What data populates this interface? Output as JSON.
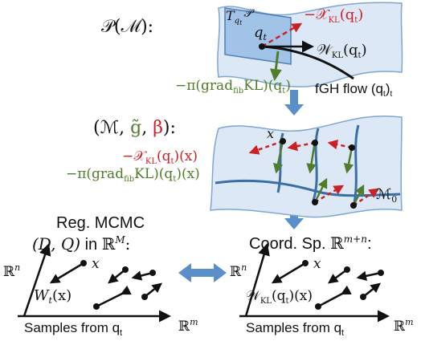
{
  "top": {
    "label": "𝒫(ℳ):",
    "tangent_label": "T",
    "tangent_sub": "q",
    "tangent_sub2": "t",
    "tangent_P": "𝒫",
    "q_t": "q",
    "q_t_sub": "t",
    "red_arrow_label": "−𝒳",
    "red_arrow_sub": "KL",
    "red_arrow_arg": "(q",
    "red_arrow_arg_sub": "t",
    "red_arrow_close": ")",
    "black_arrow_label": "𝒲",
    "black_arrow_sub": "KL",
    "black_arrow_arg": "(q",
    "black_arrow_arg_sub": "t",
    "black_arrow_close": ")",
    "green_arrow_label": "−π(grad",
    "green_arrow_sub": "fib",
    "green_arrow_rest": "KL)(q",
    "green_arrow_rest_sub": "t",
    "green_arrow_close": ")",
    "flow_label": "fGH flow (q",
    "flow_sub": "t",
    "flow_close": ")",
    "flow_sub2": "t"
  },
  "middle": {
    "label_open": "(ℳ, ",
    "label_g": "g̃",
    "label_comma": ", ",
    "label_beta": "β",
    "label_close": "):",
    "x_label": "x",
    "red_label": "−𝒳",
    "red_sub": "KL",
    "red_arg": "(q",
    "red_arg_sub": "t",
    "red_close": ")(x)",
    "green_label": "−π(grad",
    "green_sub": "fib",
    "green_rest": "KL)(q",
    "green_rest_sub": "t",
    "green_close": ")(x)",
    "m0_label": "ℳ",
    "m0_sub": "0"
  },
  "bottom_left": {
    "title_line1": "Reg. MCMC",
    "title_line2_a": "(D, Q)",
    "title_line2_b": " in ",
    "title_line2_c": "ℝ",
    "title_line2_sup": "M",
    "title_line2_d": ":",
    "y_axis": "ℝ",
    "y_axis_sup": "n",
    "x_axis": "ℝ",
    "x_axis_sup": "m",
    "x_label": "x",
    "w_label": "W",
    "w_sub": "t",
    "w_arg": "(x)",
    "samples": "Samples from q",
    "samples_sub": "t"
  },
  "bottom_right": {
    "title_a": "Coord. Sp. ",
    "title_b": "ℝ",
    "title_sup": "m+n",
    "title_c": ":",
    "y_axis": "ℝ",
    "y_axis_sup": "n",
    "x_axis": "ℝ",
    "x_axis_sup": "m",
    "x_label": "x",
    "w_label": "𝒲",
    "w_sub": "KL",
    "w_arg": "(q",
    "w_arg_sub": "t",
    "w_close": ")(x)",
    "samples": "Samples from q",
    "samples_sub": "t"
  },
  "colors": {
    "red": "#cc2027",
    "green": "#4f7d2b",
    "blue_arrow": "#5b8fc9",
    "sheet_fill": "#dce8f5",
    "sheet_stroke": "#7fa6cf",
    "tangent_fill": "#8db7e3",
    "curve": "#3b6ea5"
  }
}
